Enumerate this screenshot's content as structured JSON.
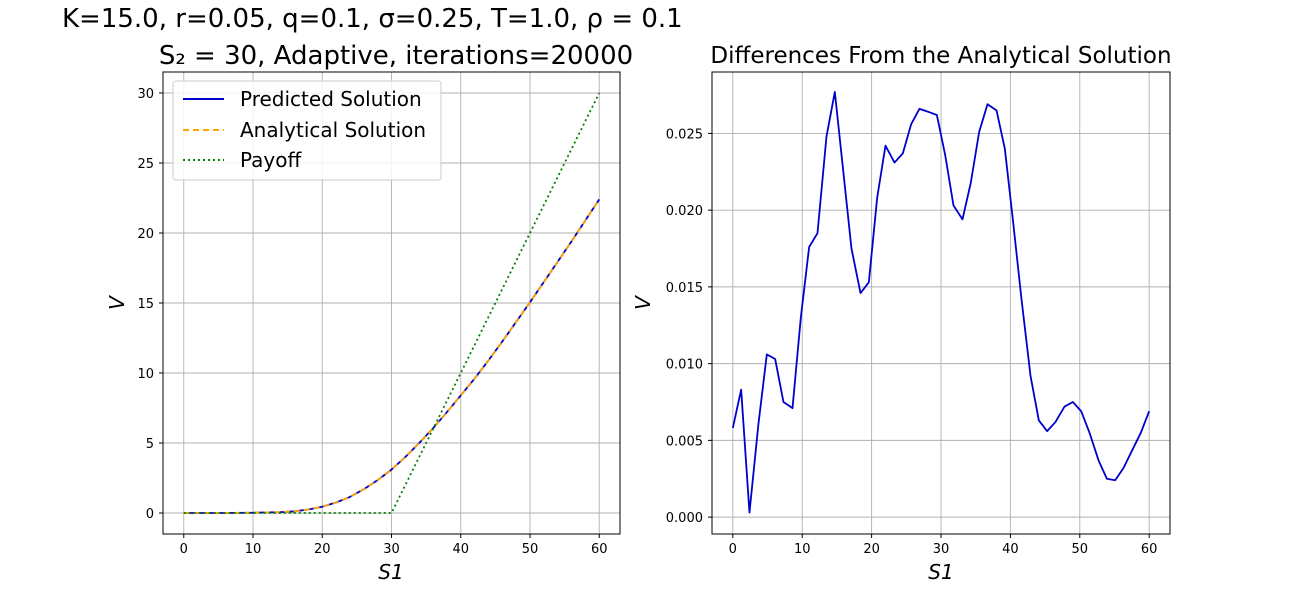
{
  "figure": {
    "title_left_line1": "K=15.0, r=0.05, q=0.1, σ=0.25, T=1.0, ρ = 0.1",
    "title_left_line2": "S₂ = 30, Adaptive, iterations=20000",
    "title_right": "Differences From the Analytical Solution"
  },
  "chart_data": [
    {
      "type": "line",
      "title": "K=15.0, r=0.05, q=0.1, σ=0.25, T=1.0, ρ = 0.1 / S₂ = 30, Adaptive, iterations=20000",
      "xlabel": "S1",
      "ylabel": "V",
      "xlim": [
        -3,
        63
      ],
      "ylim": [
        -1.5,
        31.5
      ],
      "xticks": [
        0,
        10,
        20,
        30,
        40,
        50,
        60
      ],
      "yticks": [
        0,
        5,
        10,
        15,
        20,
        25,
        30
      ],
      "xtick_labels": [
        "0",
        "10",
        "20",
        "30",
        "40",
        "50",
        "60"
      ],
      "ytick_labels": [
        "0",
        "5",
        "10",
        "15",
        "20",
        "25",
        "30"
      ],
      "grid": true,
      "legend_position": "upper-left",
      "series": [
        {
          "name": "Predicted Solution",
          "color": "#0000cc",
          "style": "solid",
          "x": [
            0,
            5,
            10,
            14,
            16,
            18,
            20,
            22,
            24,
            26,
            28,
            30,
            32,
            34,
            36,
            38,
            40,
            42,
            44,
            46,
            48,
            50,
            52,
            54,
            56,
            58,
            60
          ],
          "y": [
            0,
            0,
            0.02,
            0.06,
            0.12,
            0.25,
            0.45,
            0.75,
            1.15,
            1.7,
            2.35,
            3.1,
            4.0,
            5.0,
            6.05,
            7.2,
            8.4,
            9.6,
            10.9,
            12.25,
            13.65,
            15.05,
            16.5,
            17.95,
            19.4,
            20.9,
            22.4
          ]
        },
        {
          "name": "Analytical Solution",
          "color": "#ffa500",
          "style": "dashed",
          "x": [
            0,
            5,
            10,
            14,
            16,
            18,
            20,
            22,
            24,
            26,
            28,
            30,
            32,
            34,
            36,
            38,
            40,
            42,
            44,
            46,
            48,
            50,
            52,
            54,
            56,
            58,
            60
          ],
          "y": [
            0,
            0,
            0.02,
            0.06,
            0.12,
            0.25,
            0.45,
            0.75,
            1.15,
            1.7,
            2.35,
            3.1,
            4.0,
            5.0,
            6.05,
            7.2,
            8.4,
            9.6,
            10.9,
            12.25,
            13.65,
            15.05,
            16.5,
            17.95,
            19.4,
            20.9,
            22.4
          ]
        },
        {
          "name": "Payoff",
          "color": "#008000",
          "style": "dotted",
          "x": [
            0,
            30,
            60
          ],
          "y": [
            0,
            0,
            30
          ]
        }
      ]
    },
    {
      "type": "line",
      "title": "Differences From the Analytical Solution",
      "xlabel": "S1",
      "ylabel": "V",
      "xlim": [
        -3,
        63
      ],
      "ylim": [
        -0.0011,
        0.029
      ],
      "xticks": [
        0,
        10,
        20,
        30,
        40,
        50,
        60
      ],
      "yticks": [
        0.0,
        0.005,
        0.01,
        0.015,
        0.02,
        0.025
      ],
      "xtick_labels": [
        "0",
        "10",
        "20",
        "30",
        "40",
        "50",
        "60"
      ],
      "ytick_labels": [
        "0.000",
        "0.005",
        "0.010",
        "0.015",
        "0.020",
        "0.025"
      ],
      "grid": true,
      "series": [
        {
          "color": "#0000cc",
          "style": "solid",
          "x": [
            0,
            1.2,
            2.4,
            3.7,
            4.9,
            6.1,
            7.3,
            8.6,
            9.8,
            11.0,
            12.2,
            13.5,
            14.7,
            15.9,
            17.1,
            18.4,
            19.6,
            20.8,
            22.0,
            23.3,
            24.5,
            25.7,
            26.9,
            28.2,
            29.4,
            30.6,
            31.8,
            33.1,
            34.3,
            35.5,
            36.7,
            38.0,
            39.2,
            40.4,
            41.6,
            42.9,
            44.1,
            45.3,
            46.5,
            47.8,
            49.0,
            50.2,
            51.4,
            52.7,
            53.9,
            55.1,
            56.3,
            57.6,
            58.8,
            60.0
          ],
          "y": [
            0.0058,
            0.0083,
            0.0003,
            0.0061,
            0.0106,
            0.0103,
            0.0075,
            0.0071,
            0.013,
            0.0176,
            0.0185,
            0.0248,
            0.0277,
            0.0226,
            0.0175,
            0.0146,
            0.0153,
            0.0208,
            0.0242,
            0.0231,
            0.0237,
            0.0256,
            0.0266,
            0.0264,
            0.0262,
            0.0236,
            0.0203,
            0.0194,
            0.0218,
            0.0251,
            0.0269,
            0.0265,
            0.024,
            0.0192,
            0.0142,
            0.0092,
            0.0063,
            0.0056,
            0.0062,
            0.0072,
            0.0075,
            0.0069,
            0.0055,
            0.0037,
            0.0025,
            0.0024,
            0.0032,
            0.0044,
            0.0055,
            0.0069
          ]
        }
      ]
    }
  ]
}
